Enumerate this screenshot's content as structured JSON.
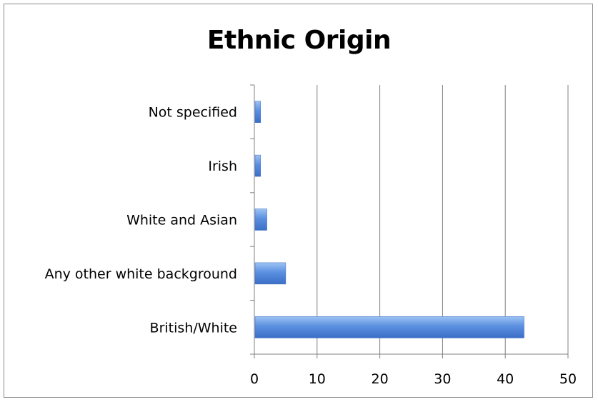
{
  "chart_data": {
    "type": "bar",
    "orientation": "horizontal",
    "title": "Ethnic Origin",
    "categories": [
      "British/White",
      "Any other white background",
      "White and Asian",
      "Irish",
      "Not specified"
    ],
    "values": [
      43,
      5,
      2,
      1,
      1
    ],
    "xlim": [
      0,
      50
    ],
    "xticks": [
      "0",
      "10",
      "20",
      "30",
      "40",
      "50"
    ],
    "xlabel": "",
    "ylabel": "",
    "grid": "vertical",
    "legend": "none"
  },
  "colors": {
    "bar_top": "#9dc3f5",
    "bar_mid": "#5b8fe0",
    "bar_bottom": "#3a6fc7",
    "grid": "#808080",
    "axis": "#808080"
  }
}
